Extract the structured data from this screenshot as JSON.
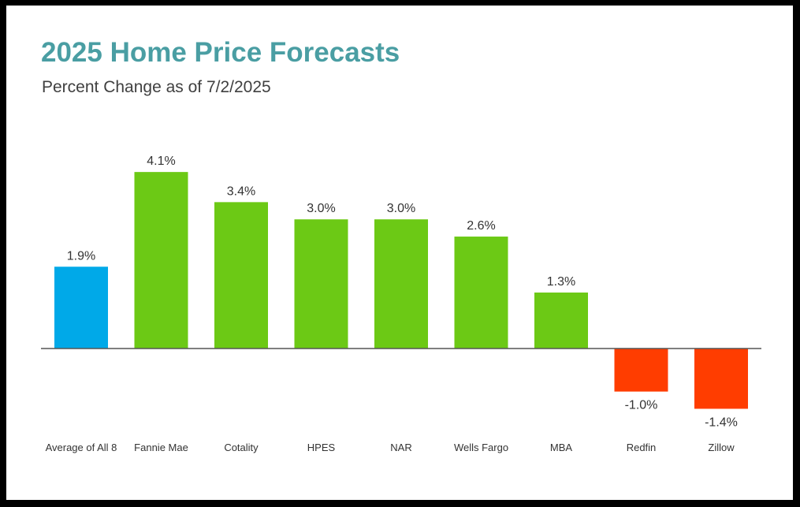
{
  "chart_data": {
    "type": "bar",
    "title": "2025 Home Price Forecasts",
    "subtitle": "Percent Change as of 7/2/2025",
    "categories": [
      "Average of All 8",
      "Fannie Mae",
      "Cotality",
      "HPES",
      "NAR",
      "Wells Fargo",
      "MBA",
      "Redfin",
      "Zillow"
    ],
    "values": [
      1.9,
      4.1,
      3.4,
      3.0,
      3.0,
      2.6,
      1.3,
      -1.0,
      -1.4
    ],
    "data_labels": [
      "1.9%",
      "4.1%",
      "3.4%",
      "3.0%",
      "3.0%",
      "2.6%",
      "1.3%",
      "-1.0%",
      "-1.4%"
    ],
    "bar_colors": [
      "#00a9e8",
      "#6cc915",
      "#6cc915",
      "#6cc915",
      "#6cc915",
      "#6cc915",
      "#6cc915",
      "#ff3d00",
      "#ff3d00"
    ],
    "ylim": [
      -1.4,
      4.1
    ],
    "grid": false,
    "legend": "none"
  }
}
